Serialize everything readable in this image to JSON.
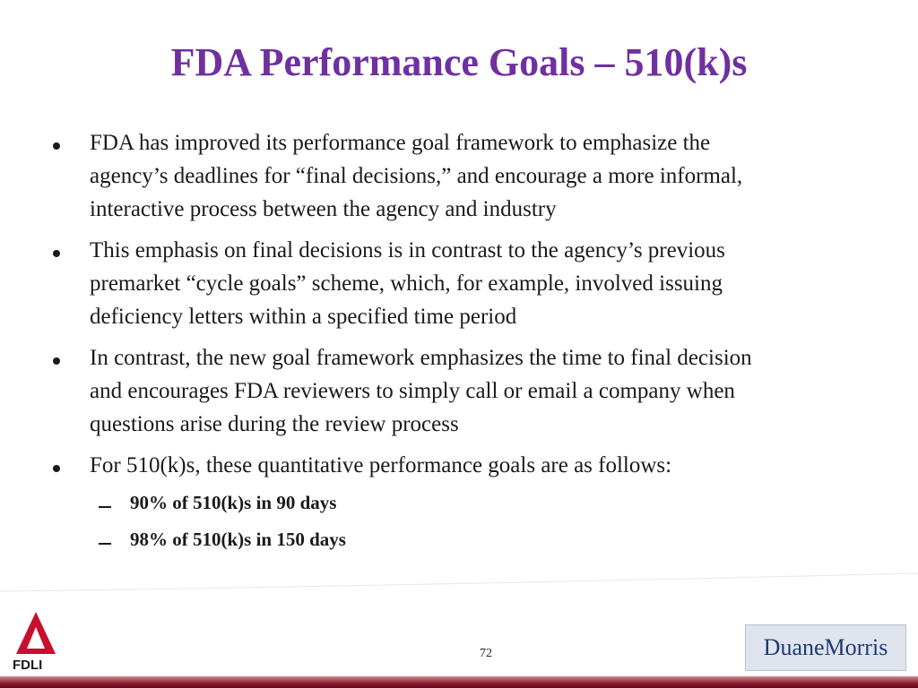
{
  "slide": {
    "title": "FDA Performance Goals – 510(k)s",
    "bullets": [
      {
        "lines": [
          "FDA has improved its performance goal framework to emphasize the",
          "agency’s deadlines for “final decisions,” and encourage a more informal,",
          "interactive process between the agency and industry"
        ]
      },
      {
        "lines": [
          "This emphasis on final decisions is in contrast to the agency’s previous",
          "premarket “cycle goals” scheme, which, for example, involved issuing",
          "deficiency letters within a specified time period"
        ]
      },
      {
        "lines": [
          "In contrast, the new goal framework emphasizes the time to final decision",
          "and encourages FDA reviewers to simply call or email a company when",
          "questions arise during the review process"
        ]
      },
      {
        "lines": [
          "For 510(k)s, these quantitative performance goals are as follows:"
        ]
      }
    ],
    "sub_bullets": [
      "90% of 510(k)s in 90 days",
      "98% of 510(k)s in 150 days"
    ],
    "page_number": "72",
    "left_logo": "FDLI",
    "right_logo": {
      "first": "Duane",
      "second": "Morris"
    }
  }
}
